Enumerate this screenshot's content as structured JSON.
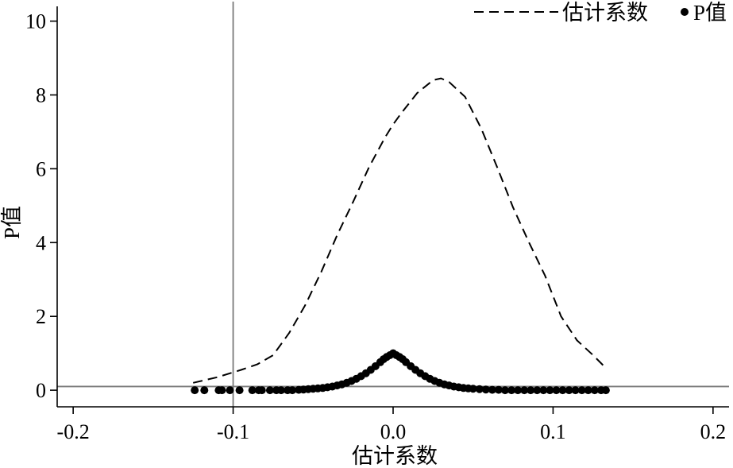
{
  "chart_data": {
    "type": "line",
    "title": "",
    "xlabel": "估计系数",
    "ylabel": "P值",
    "xlim": [
      -0.21,
      0.21
    ],
    "ylim": [
      -0.45,
      10.4
    ],
    "xticks": [
      -0.2,
      -0.1,
      0.0,
      0.1,
      0.2
    ],
    "xtick_labels": [
      "-0.2",
      "-0.1",
      "0.0",
      "0.1",
      "0.2"
    ],
    "yticks": [
      0,
      2,
      4,
      6,
      8,
      10
    ],
    "ytick_labels": [
      "0",
      "2",
      "4",
      "6",
      "8",
      "10"
    ],
    "grid": false,
    "legend_position": "top-right",
    "reference_lines": {
      "vertical_x": -0.1,
      "horizontal_y": 0.1
    },
    "series": [
      {
        "name": "估计系数",
        "style": "dashed line",
        "x": [
          -0.125,
          -0.11,
          -0.095,
          -0.085,
          -0.075,
          -0.065,
          -0.055,
          -0.045,
          -0.035,
          -0.025,
          -0.015,
          -0.005,
          0.0,
          0.005,
          0.015,
          0.025,
          0.03,
          0.035,
          0.045,
          0.055,
          0.065,
          0.075,
          0.085,
          0.095,
          0.105,
          0.115,
          0.125,
          0.133
        ],
        "values": [
          0.2,
          0.35,
          0.55,
          0.7,
          0.95,
          1.55,
          2.3,
          3.2,
          4.2,
          5.1,
          6.05,
          6.85,
          7.2,
          7.5,
          8.05,
          8.4,
          8.45,
          8.35,
          7.95,
          7.1,
          6.05,
          4.95,
          4.0,
          3.1,
          2.0,
          1.35,
          0.95,
          0.6
        ]
      },
      {
        "name": "P值",
        "style": "filled circles",
        "x": [
          -0.124,
          -0.118,
          -0.109,
          -0.107,
          -0.102,
          -0.096,
          -0.088,
          -0.084,
          -0.082,
          -0.077,
          -0.073,
          -0.07,
          -0.066,
          -0.063,
          -0.059,
          -0.056,
          -0.053,
          -0.05,
          -0.047,
          -0.044,
          -0.041,
          -0.038,
          -0.035,
          -0.032,
          -0.029,
          -0.026,
          -0.023,
          -0.02,
          -0.017,
          -0.014,
          -0.011,
          -0.008,
          -0.006,
          -0.004,
          -0.002,
          0.0,
          0.002,
          0.004,
          0.006,
          0.008,
          0.011,
          0.014,
          0.017,
          0.02,
          0.023,
          0.026,
          0.029,
          0.032,
          0.035,
          0.038,
          0.041,
          0.044,
          0.047,
          0.05,
          0.054,
          0.058,
          0.062,
          0.066,
          0.07,
          0.074,
          0.078,
          0.082,
          0.086,
          0.09,
          0.094,
          0.098,
          0.102,
          0.106,
          0.11,
          0.114,
          0.118,
          0.122,
          0.126,
          0.13,
          0.133
        ],
        "values": [
          0.0,
          0.0,
          0.0,
          0.0,
          0.0,
          0.0,
          0.0,
          0.0,
          0.0,
          0.0,
          0.0,
          0.0,
          0.0,
          0.0,
          0.01,
          0.02,
          0.03,
          0.04,
          0.05,
          0.06,
          0.08,
          0.1,
          0.13,
          0.16,
          0.2,
          0.25,
          0.31,
          0.38,
          0.46,
          0.55,
          0.65,
          0.76,
          0.84,
          0.9,
          0.95,
          1.0,
          0.95,
          0.9,
          0.84,
          0.76,
          0.65,
          0.55,
          0.46,
          0.38,
          0.31,
          0.25,
          0.2,
          0.16,
          0.13,
          0.1,
          0.08,
          0.06,
          0.05,
          0.04,
          0.03,
          0.02,
          0.01,
          0.01,
          0.0,
          0.0,
          0.0,
          0.0,
          0.0,
          0.0,
          0.0,
          0.0,
          0.0,
          0.0,
          0.0,
          0.0,
          0.0,
          0.0,
          0.0,
          0.0,
          0.0
        ]
      }
    ]
  }
}
